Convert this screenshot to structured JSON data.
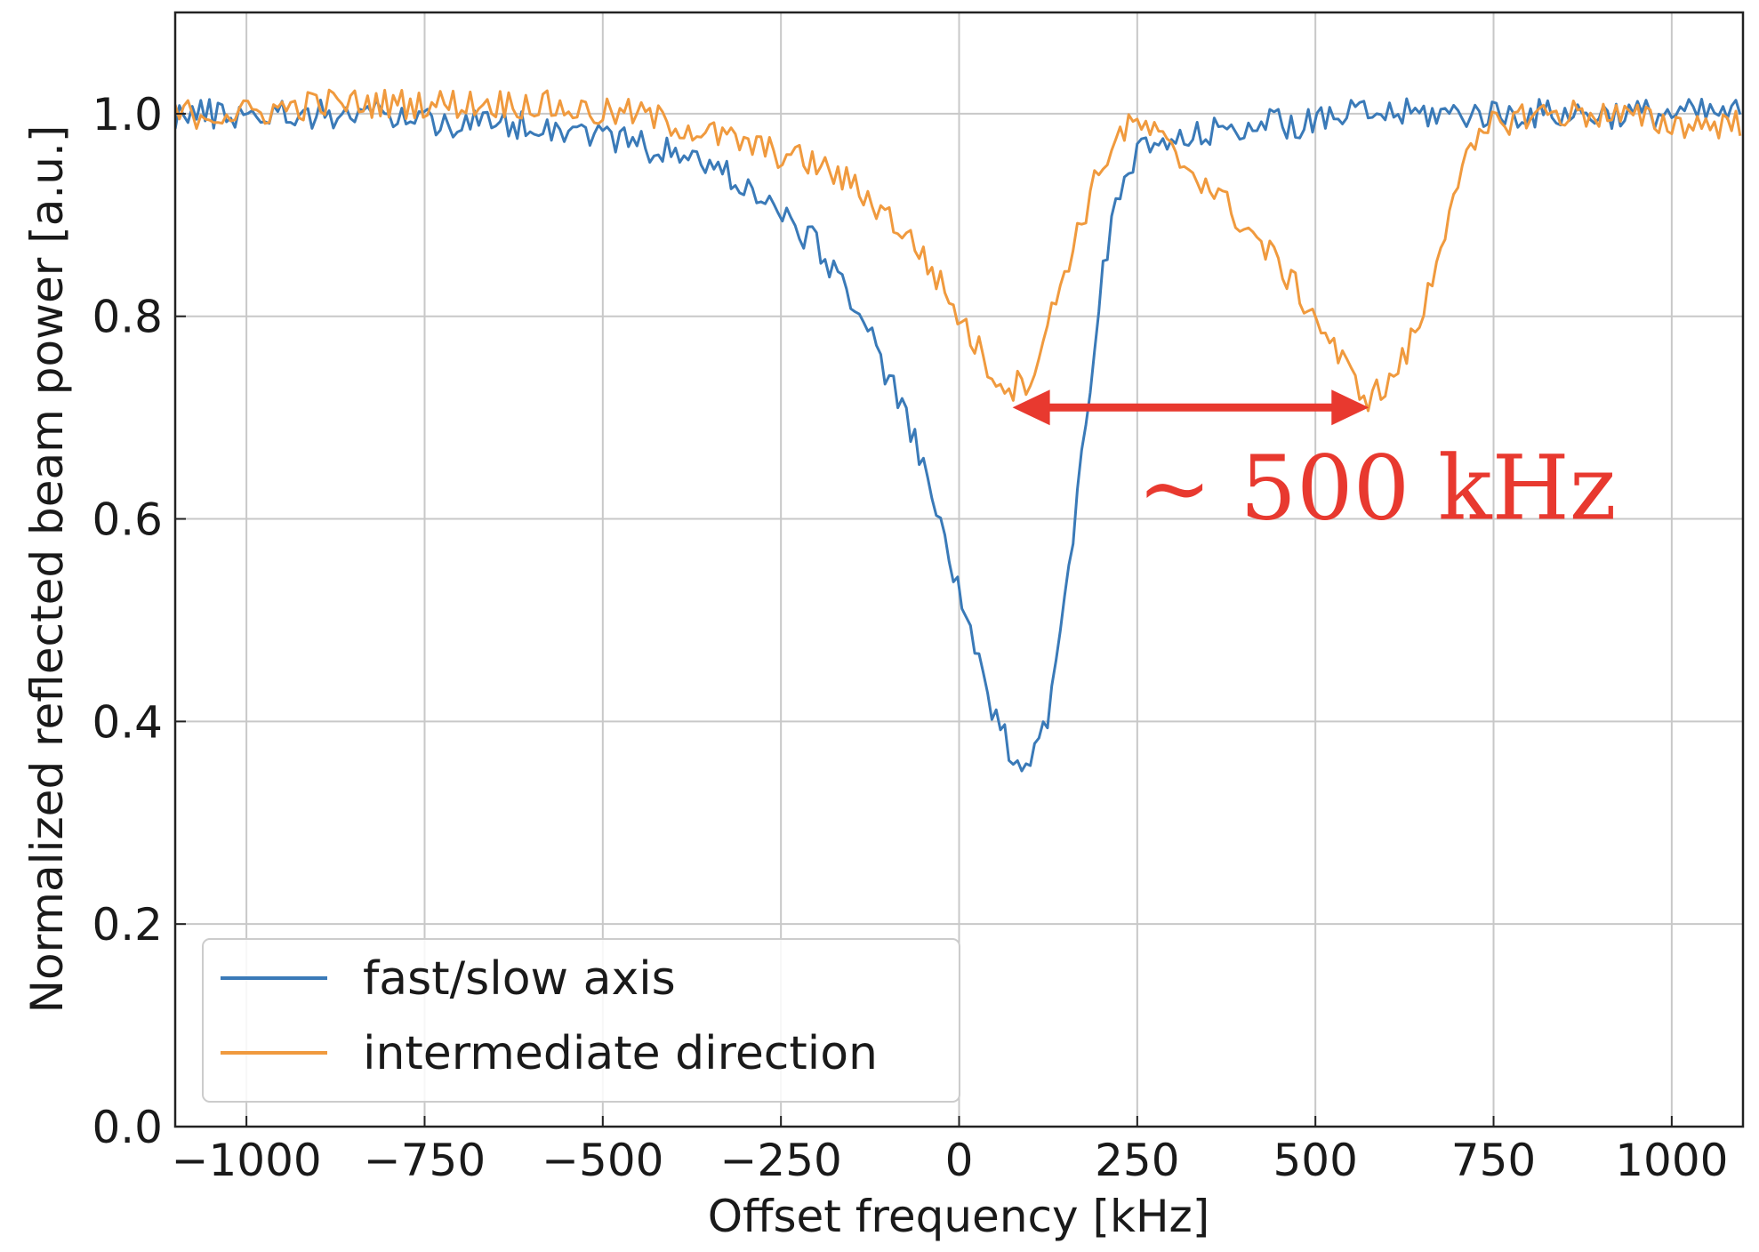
{
  "chart_data": {
    "type": "line",
    "title": "",
    "xlabel": "Offset frequency [kHz]",
    "ylabel": "Normalized reflected beam power [a.u.]",
    "xlim": [
      -1100,
      1100
    ],
    "ylim": [
      0.0,
      1.1
    ],
    "xticks": [
      -1000,
      -750,
      -500,
      -250,
      0,
      250,
      500,
      750,
      1000
    ],
    "xtick_labels": [
      "−1000",
      "−750",
      "−500",
      "−250",
      "0",
      "250",
      "500",
      "750",
      "1000"
    ],
    "yticks": [
      0.0,
      0.2,
      0.4,
      0.6,
      0.8,
      1.0
    ],
    "ytick_labels": [
      "0.0",
      "0.2",
      "0.4",
      "0.6",
      "0.8",
      "1.0"
    ],
    "grid": true,
    "legend_position": "bottom-left",
    "series": [
      {
        "name": "fast/slow axis",
        "color": "#3a7ab8",
        "x": [
          -1100,
          -1000,
          -900,
          -800,
          -700,
          -600,
          -500,
          -450,
          -400,
          -350,
          -300,
          -250,
          -200,
          -150,
          -125,
          -100,
          -75,
          -50,
          -25,
          0,
          25,
          50,
          75,
          100,
          125,
          150,
          175,
          200,
          225,
          250,
          275,
          300,
          350,
          400,
          450,
          500,
          550,
          600,
          700,
          800,
          900,
          1000,
          1100
        ],
        "y": [
          1.0,
          1.0,
          1.0,
          1.0,
          0.99,
          0.99,
          0.98,
          0.97,
          0.96,
          0.95,
          0.93,
          0.9,
          0.87,
          0.82,
          0.78,
          0.74,
          0.7,
          0.65,
          0.59,
          0.53,
          0.46,
          0.4,
          0.37,
          0.36,
          0.41,
          0.52,
          0.68,
          0.84,
          0.92,
          0.96,
          0.97,
          0.97,
          0.98,
          0.99,
          0.99,
          0.99,
          1.0,
          1.0,
          1.0,
          1.0,
          1.0,
          1.0,
          1.0
        ]
      },
      {
        "name": "intermediate direction",
        "color": "#f09a3e",
        "x": [
          -1100,
          -1000,
          -900,
          -800,
          -700,
          -600,
          -500,
          -450,
          -400,
          -350,
          -300,
          -250,
          -200,
          -150,
          -100,
          -50,
          0,
          25,
          50,
          75,
          100,
          125,
          150,
          175,
          200,
          225,
          250,
          275,
          300,
          350,
          400,
          450,
          500,
          525,
          550,
          575,
          600,
          625,
          650,
          675,
          700,
          750,
          800,
          900,
          1000,
          1100
        ],
        "y": [
          1.0,
          1.0,
          1.01,
          1.01,
          1.01,
          1.01,
          1.0,
          1.0,
          0.99,
          0.98,
          0.97,
          0.96,
          0.95,
          0.93,
          0.9,
          0.86,
          0.8,
          0.77,
          0.74,
          0.73,
          0.74,
          0.79,
          0.85,
          0.9,
          0.95,
          0.98,
          0.99,
          0.98,
          0.96,
          0.93,
          0.89,
          0.85,
          0.8,
          0.77,
          0.74,
          0.72,
          0.73,
          0.76,
          0.8,
          0.87,
          0.94,
          0.99,
          1.0,
          1.0,
          0.99,
          0.99
        ]
      }
    ],
    "annotations": [
      {
        "type": "double-arrow",
        "color": "#e8392f",
        "x_start": 75,
        "x_end": 575,
        "y": 0.71,
        "label": "~ 500 kHz",
        "label_x": 250,
        "label_y": 0.6
      }
    ]
  }
}
